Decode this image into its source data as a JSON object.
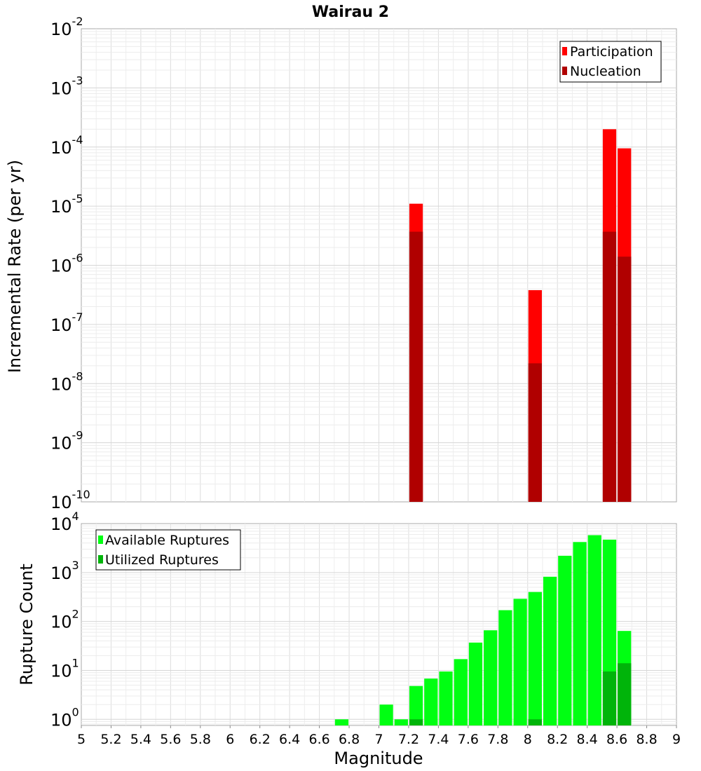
{
  "title": "Wairau 2",
  "chart_data": [
    {
      "type": "bar",
      "yscale": "log",
      "ylabel": "Incremental Rate (per yr)",
      "xlim": [
        5,
        9
      ],
      "ylim": [
        1e-10,
        0.01
      ],
      "yticks": [
        {
          "base": "10",
          "exp": "-2"
        },
        {
          "base": "10",
          "exp": "-3"
        },
        {
          "base": "10",
          "exp": "-4"
        },
        {
          "base": "10",
          "exp": "-5"
        },
        {
          "base": "10",
          "exp": "-6"
        },
        {
          "base": "10",
          "exp": "-7"
        },
        {
          "base": "10",
          "exp": "-8"
        },
        {
          "base": "10",
          "exp": "-9"
        },
        {
          "base": "10",
          "exp": "-10"
        }
      ],
      "grid": true,
      "legend_position": "top-right",
      "bar_width": 0.1,
      "series": [
        {
          "name": "Participation",
          "color": "#ff0000",
          "points": [
            {
              "x": 7.25,
              "y": 1.1e-05
            },
            {
              "x": 8.05,
              "y": 3.8e-07
            },
            {
              "x": 8.55,
              "y": 0.0002
            },
            {
              "x": 8.65,
              "y": 9.5e-05
            }
          ]
        },
        {
          "name": "Nucleation",
          "color": "#b00000",
          "points": [
            {
              "x": 7.25,
              "y": 3.7e-06
            },
            {
              "x": 8.05,
              "y": 2.2e-08
            },
            {
              "x": 8.55,
              "y": 3.7e-06
            },
            {
              "x": 8.65,
              "y": 1.4e-06
            }
          ]
        }
      ]
    },
    {
      "type": "bar",
      "yscale": "log",
      "xlabel": "Magnitude",
      "ylabel": "Rupture Count",
      "xlim": [
        5,
        9
      ],
      "ylim": [
        0.75,
        10000
      ],
      "xticks": [
        "5",
        "5.2",
        "5.4",
        "5.6",
        "5.8",
        "6",
        "6.2",
        "6.4",
        "6.6",
        "6.8",
        "7",
        "7.2",
        "7.4",
        "7.6",
        "7.8",
        "8",
        "8.2",
        "8.4",
        "8.6",
        "8.8",
        "9"
      ],
      "yticks": [
        {
          "base": "10",
          "exp": "4"
        },
        {
          "base": "10",
          "exp": "3"
        },
        {
          "base": "10",
          "exp": "2"
        },
        {
          "base": "10",
          "exp": "1"
        },
        {
          "base": "10",
          "exp": "0"
        }
      ],
      "grid": true,
      "legend_position": "top-left",
      "bar_width": 0.1,
      "series": [
        {
          "name": "Available Ruptures",
          "color": "#00ff12",
          "points": [
            {
              "x": 6.75,
              "y": 1
            },
            {
              "x": 7.05,
              "y": 2
            },
            {
              "x": 7.15,
              "y": 1
            },
            {
              "x": 7.25,
              "y": 4.8
            },
            {
              "x": 7.35,
              "y": 6.8
            },
            {
              "x": 7.45,
              "y": 9.5
            },
            {
              "x": 7.55,
              "y": 17
            },
            {
              "x": 7.65,
              "y": 37
            },
            {
              "x": 7.75,
              "y": 66
            },
            {
              "x": 7.85,
              "y": 170
            },
            {
              "x": 7.95,
              "y": 290
            },
            {
              "x": 8.05,
              "y": 400
            },
            {
              "x": 8.15,
              "y": 820
            },
            {
              "x": 8.25,
              "y": 2200
            },
            {
              "x": 8.35,
              "y": 4200
            },
            {
              "x": 8.45,
              "y": 5800
            },
            {
              "x": 8.55,
              "y": 4700
            },
            {
              "x": 8.65,
              "y": 64
            }
          ]
        },
        {
          "name": "Utilized Ruptures",
          "color": "#00b40a",
          "points": [
            {
              "x": 7.25,
              "y": 1
            },
            {
              "x": 8.05,
              "y": 1
            },
            {
              "x": 8.55,
              "y": 9.5
            },
            {
              "x": 8.65,
              "y": 14
            }
          ]
        }
      ]
    }
  ]
}
